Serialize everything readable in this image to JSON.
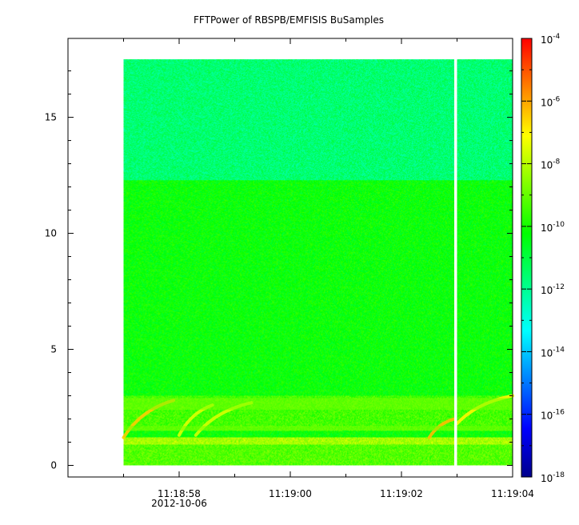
{
  "chart_data": {
    "type": "heatmap",
    "title": "FFTPower of RBSPB/EMFISIS  BuSamples",
    "xlabel": "",
    "ylabel": "",
    "x_ticks": [
      {
        "label": "11:18:58",
        "sublabel": "2012-10-06"
      },
      {
        "label": "11:19:00",
        "sublabel": ""
      },
      {
        "label": "11:19:02",
        "sublabel": ""
      },
      {
        "label": "11:19:04",
        "sublabel": ""
      }
    ],
    "y_ticks": [
      "0",
      "5",
      "10",
      "15"
    ],
    "ylim": [
      -0.5,
      18.4
    ],
    "xlim_seconds_after_11_18_56": [
      0.0,
      8.0
    ],
    "data_x_range_seconds": [
      1.0,
      8.0
    ],
    "data_y_range": [
      0.0,
      17.5
    ],
    "data_gap_seconds": [
      6.95,
      7.0
    ],
    "colorbar": {
      "scale": "log",
      "range": [
        1e-18,
        0.0001
      ],
      "tick_exponents": [
        "-4",
        "-6",
        "-8",
        "-10",
        "-12",
        "-14",
        "-16",
        "-18"
      ],
      "colors": [
        "#00008b",
        "#0000ff",
        "#0080ff",
        "#00ffff",
        "#00ff80",
        "#00ff00",
        "#80ff00",
        "#ffff00",
        "#ff8000",
        "#ff0000"
      ]
    },
    "regions": [
      {
        "y_range": [
          12.3,
          17.5
        ],
        "log_power": -11.6
      },
      {
        "y_range": [
          3.0,
          12.3
        ],
        "log_power": -10.2
      },
      {
        "y_range": [
          1.5,
          3.0
        ],
        "log_power": -9.4
      },
      {
        "y_range": [
          0.9,
          1.2
        ],
        "log_power": -8.2
      },
      {
        "y_range": [
          0.0,
          0.9
        ],
        "log_power": -9.2
      }
    ],
    "features": [
      {
        "kind": "rising-tone",
        "x_range": [
          1.0,
          1.9
        ],
        "y_range": [
          1.2,
          2.8
        ],
        "log_power": -6.5
      },
      {
        "kind": "rising-tone",
        "x_range": [
          2.0,
          2.6
        ],
        "y_range": [
          1.3,
          2.6
        ],
        "log_power": -7.5
      },
      {
        "kind": "rising-tone",
        "x_range": [
          2.3,
          3.3
        ],
        "y_range": [
          1.3,
          2.7
        ],
        "log_power": -7.6
      },
      {
        "kind": "rising-tone",
        "x_range": [
          6.5,
          6.95
        ],
        "y_range": [
          1.2,
          2.0
        ],
        "log_power": -6.3
      },
      {
        "kind": "rising-tone",
        "x_range": [
          7.0,
          8.0
        ],
        "y_range": [
          1.8,
          3.0
        ],
        "log_power": -7.0
      },
      {
        "kind": "band",
        "x_range": [
          1.0,
          8.0
        ],
        "y_range": [
          2.4,
          2.9
        ],
        "log_power": -8.8
      },
      {
        "kind": "band",
        "x_range": [
          1.0,
          8.0
        ],
        "y_range": [
          1.5,
          1.7
        ],
        "log_power": -8.8
      }
    ]
  }
}
